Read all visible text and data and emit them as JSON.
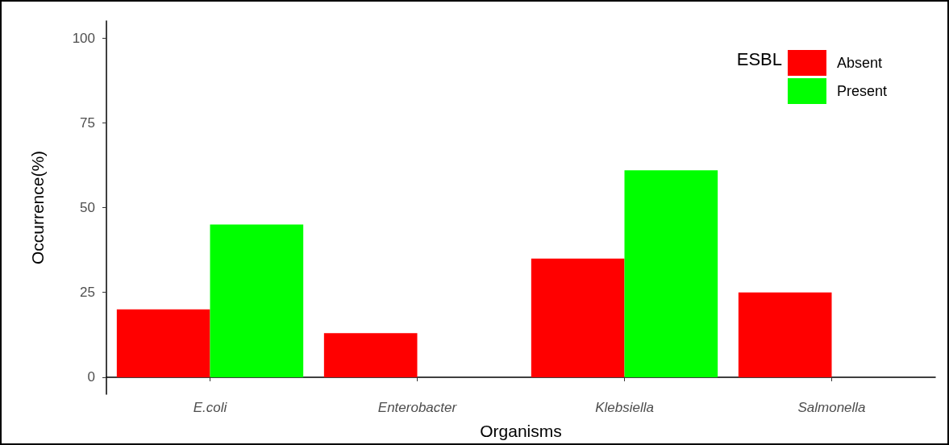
{
  "chart_data": {
    "type": "bar",
    "xlabel": "Organisms",
    "ylabel": "Occurrence(%)",
    "legend_title": "ESBL",
    "categories": [
      "E.coli",
      "Enterobacter",
      "Klebsiella",
      "Salmonella"
    ],
    "series": [
      {
        "name": "Absent",
        "color": "#ff0000",
        "values": [
          20,
          13,
          35,
          25
        ]
      },
      {
        "name": "Present",
        "color": "#00ff00",
        "values": [
          45,
          null,
          61,
          null
        ]
      }
    ],
    "ylim": [
      -5,
      105
    ],
    "yticks": [
      0,
      25,
      50,
      75,
      100
    ],
    "grid": false,
    "legend": "top right"
  }
}
